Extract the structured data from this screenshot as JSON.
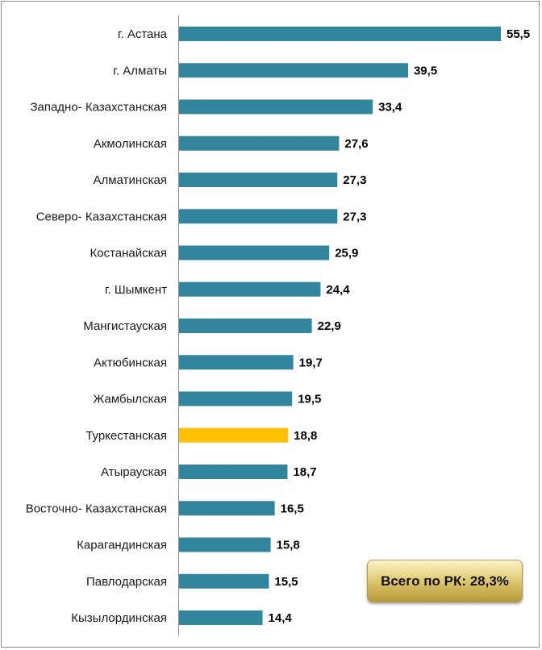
{
  "chart_data": {
    "type": "bar",
    "orientation": "horizontal",
    "categories": [
      "г. Астана",
      "г. Алматы",
      "Западно- Казахстанская",
      "Акмолинская",
      "Алматинская",
      "Северо- Казахстанская",
      "Костанайская",
      "г. Шымкент",
      "Мангистауская",
      "Актюбинская",
      "Жамбылская",
      "Туркестанская",
      "Атырауская",
      "Восточно- Казахстанская",
      "Карагандинская",
      "Павлодарская",
      "Кызылординская"
    ],
    "values": [
      55.5,
      39.5,
      33.4,
      27.6,
      27.3,
      27.3,
      25.9,
      24.4,
      22.9,
      19.7,
      19.5,
      18.8,
      18.7,
      16.5,
      15.8,
      15.5,
      14.4
    ],
    "value_labels": [
      "55,5",
      "39,5",
      "33,4",
      "27,6",
      "27,3",
      "27,3",
      "25,9",
      "24,4",
      "22,9",
      "19,7",
      "19,5",
      "18,8",
      "18,7",
      "16,5",
      "15,8",
      "15,5",
      "14,4"
    ],
    "highlight_index": 11,
    "bar_color": "#31859c",
    "highlight_color": "#ffc000",
    "xlim": [
      0,
      55.5
    ],
    "grid": false,
    "legend": "none"
  },
  "total_badge": {
    "text": "Всего по РК: 28,3%"
  }
}
